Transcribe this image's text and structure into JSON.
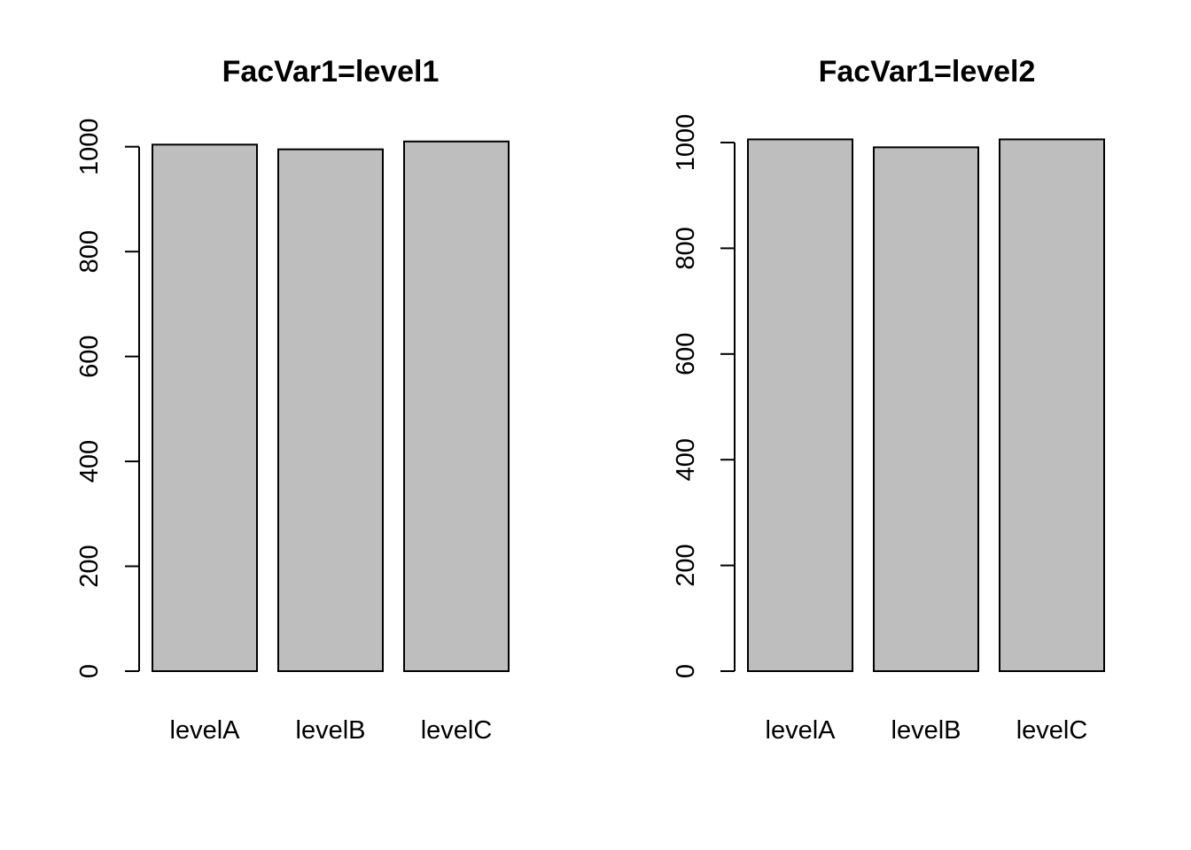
{
  "chart_data": [
    {
      "type": "bar",
      "title": "FacVar1=level1",
      "categories": [
        "levelA",
        "levelB",
        "levelC"
      ],
      "values": [
        1004,
        995,
        1010
      ],
      "yticks": [
        0,
        200,
        400,
        600,
        800,
        1000
      ],
      "ylim": [
        0,
        1045
      ],
      "xlabel": "",
      "ylabel": "",
      "bar_color": "#BEBEBE",
      "grid": false,
      "legend": "none"
    },
    {
      "type": "bar",
      "title": "FacVar1=level2",
      "categories": [
        "levelA",
        "levelB",
        "levelC"
      ],
      "values": [
        1006,
        991,
        1006
      ],
      "yticks": [
        0,
        200,
        400,
        600,
        800,
        1000
      ],
      "ylim": [
        0,
        1050
      ],
      "xlabel": "",
      "ylabel": "",
      "bar_color": "#BEBEBE",
      "grid": false,
      "legend": "none"
    }
  ]
}
